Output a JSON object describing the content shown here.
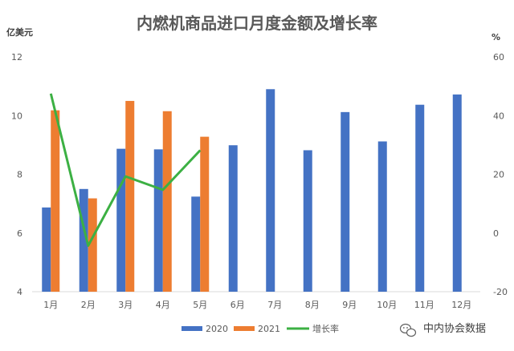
{
  "chart_data": {
    "type": "bar",
    "title": "内燃机商品进口月度金额及增长率",
    "y_left_unit": "亿美元",
    "y_right_unit": "%",
    "categories": [
      "1月",
      "2月",
      "3月",
      "4月",
      "5月",
      "6月",
      "7月",
      "8月",
      "9月",
      "10月",
      "11月",
      "12月"
    ],
    "y_left_ticks": [
      "4",
      "6",
      "8",
      "10",
      "12"
    ],
    "y_right_ticks": [
      "-20",
      "0",
      "20",
      "40",
      "60"
    ],
    "ylim_left": [
      4,
      12
    ],
    "ylim_right": [
      -20,
      60
    ],
    "series": [
      {
        "name": "2020",
        "type": "bar",
        "axis": "left",
        "color": "#4472C4",
        "values": [
          6.87,
          7.5,
          8.87,
          8.85,
          7.24,
          8.99,
          10.9,
          8.82,
          10.12,
          9.12,
          10.37,
          10.72
        ]
      },
      {
        "name": "2021",
        "type": "bar",
        "axis": "left",
        "color": "#ED7D31",
        "values": [
          10.18,
          7.18,
          10.5,
          10.15,
          9.28,
          null,
          null,
          null,
          null,
          null,
          null,
          null
        ]
      },
      {
        "name": "增长率",
        "type": "line",
        "axis": "right",
        "color": "#3CB043",
        "values": [
          47.5,
          -4.3,
          19.3,
          14.7,
          28.2,
          null,
          null,
          null,
          null,
          null,
          null,
          null
        ]
      }
    ],
    "legend_position": "bottom",
    "grid": false
  },
  "watermark": {
    "text": "中内协会数据"
  }
}
